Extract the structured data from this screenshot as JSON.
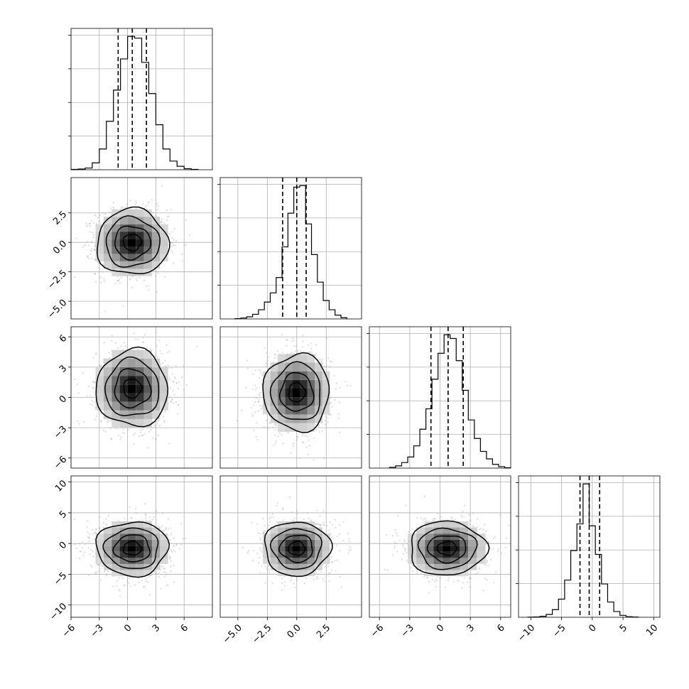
{
  "chart_data": {
    "type": "corner",
    "grid": true,
    "parameters": [
      {
        "range": [
          -6,
          9
        ],
        "ticks": [
          -6,
          -3,
          0,
          3,
          6
        ],
        "tick_labels": [
          "−6",
          "−3",
          "0",
          "3",
          "6"
        ],
        "quantiles": [
          -1.0,
          0.5,
          2.0
        ],
        "hist": {
          "edges": [
            -6,
            -5.25,
            -4.5,
            -3.75,
            -3,
            -2.25,
            -1.5,
            -0.75,
            0,
            0.75,
            1.5,
            2.25,
            3,
            3.75,
            4.5,
            5.25,
            6,
            6.75,
            7.5
          ],
          "counts": [
            2,
            4,
            10,
            40,
            120,
            280,
            460,
            640,
            770,
            760,
            620,
            440,
            260,
            120,
            50,
            20,
            6,
            2
          ]
        }
      },
      {
        "range": [
          -6.5,
          5.5
        ],
        "ticks": [
          -5.0,
          -2.5,
          0.0,
          2.5
        ],
        "tick_labels": [
          "−5.0",
          "−2.5",
          "0.0",
          "2.5"
        ],
        "quantiles": [
          -1.2,
          0.0,
          0.8
        ],
        "hist": {
          "edges": [
            -5.25,
            -4.75,
            -4.25,
            -3.75,
            -3.25,
            -2.75,
            -2.25,
            -1.75,
            -1.25,
            -0.75,
            -0.25,
            0.25,
            0.75,
            1.25,
            1.75,
            2.25,
            2.75,
            3.25,
            3.75,
            4.25
          ],
          "counts": [
            2,
            6,
            14,
            30,
            60,
            110,
            170,
            270,
            470,
            690,
            860,
            870,
            620,
            420,
            240,
            120,
            60,
            25,
            8
          ]
        }
      },
      {
        "range": [
          -7,
          7
        ],
        "ticks": [
          -6,
          -3,
          0,
          3,
          6
        ],
        "tick_labels": [
          "−6",
          "−3",
          "0",
          "3",
          "6"
        ],
        "quantiles": [
          -0.9,
          0.8,
          2.3
        ],
        "hist": {
          "edges": [
            -5,
            -4.4,
            -3.8,
            -3.2,
            -2.6,
            -2,
            -1.4,
            -0.8,
            -0.2,
            0.4,
            1,
            1.6,
            2.2,
            2.8,
            3.4,
            4,
            4.6,
            5.2,
            5.8,
            6.4,
            7
          ],
          "counts": [
            4,
            12,
            30,
            60,
            120,
            210,
            320,
            480,
            620,
            720,
            700,
            580,
            420,
            260,
            160,
            90,
            50,
            20,
            8,
            2
          ]
        }
      },
      {
        "range": [
          -12,
          11
        ],
        "ticks": [
          -10,
          -5,
          0,
          5,
          10
        ],
        "tick_labels": [
          "−10",
          "−5",
          "0",
          "5",
          "10"
        ],
        "quantiles": [
          -2.0,
          -0.5,
          1.2
        ],
        "hist": {
          "edges": [
            -10.5,
            -9.5,
            -8.5,
            -7.5,
            -6.5,
            -5.5,
            -4.5,
            -3.5,
            -2.5,
            -1.5,
            -0.5,
            0.5,
            1.5,
            2.5,
            3.5,
            4.5,
            5.5,
            6.5,
            7.5
          ],
          "counts": [
            1,
            3,
            10,
            30,
            80,
            190,
            390,
            700,
            980,
            1400,
            960,
            660,
            350,
            160,
            60,
            20,
            6,
            2
          ]
        }
      }
    ],
    "pairs": [
      {
        "x": 0,
        "y": 1,
        "center": [
          0.5,
          0.0
        ],
        "sigma": [
          1.9,
          1.4
        ],
        "contour_levels": [
          0.5,
          1.0,
          1.5,
          2.0
        ],
        "peak": [
          0.3,
          0.1
        ]
      },
      {
        "x": 0,
        "y": 2,
        "center": [
          0.5,
          0.9
        ],
        "sigma": [
          1.9,
          1.9
        ],
        "contour_levels": [
          0.5,
          1.0,
          1.5,
          2.0
        ],
        "peak": [
          0.4,
          0.9
        ]
      },
      {
        "x": 1,
        "y": 2,
        "center": [
          0.0,
          0.5
        ],
        "sigma": [
          1.4,
          1.9
        ],
        "contour_levels": [
          0.5,
          1.0,
          1.5,
          2.0
        ],
        "peak": [
          0.0,
          0.6
        ]
      },
      {
        "x": 0,
        "y": 3,
        "center": [
          0.5,
          -0.8
        ],
        "sigma": [
          1.9,
          2.2
        ],
        "contour_levels": [
          0.5,
          1.0,
          1.5,
          2.0
        ],
        "peak": [
          0.5,
          -1.0
        ]
      },
      {
        "x": 1,
        "y": 3,
        "center": [
          0.0,
          -0.8
        ],
        "sigma": [
          1.4,
          2.2
        ],
        "contour_levels": [
          0.5,
          1.0,
          1.5,
          2.0
        ],
        "peak": [
          0.0,
          -1.0
        ]
      },
      {
        "x": 2,
        "y": 3,
        "center": [
          0.7,
          -0.8
        ],
        "sigma": [
          1.9,
          2.2
        ],
        "contour_levels": [
          0.5,
          1.0,
          1.5,
          2.0
        ],
        "peak": [
          0.6,
          -1.0
        ]
      }
    ]
  }
}
